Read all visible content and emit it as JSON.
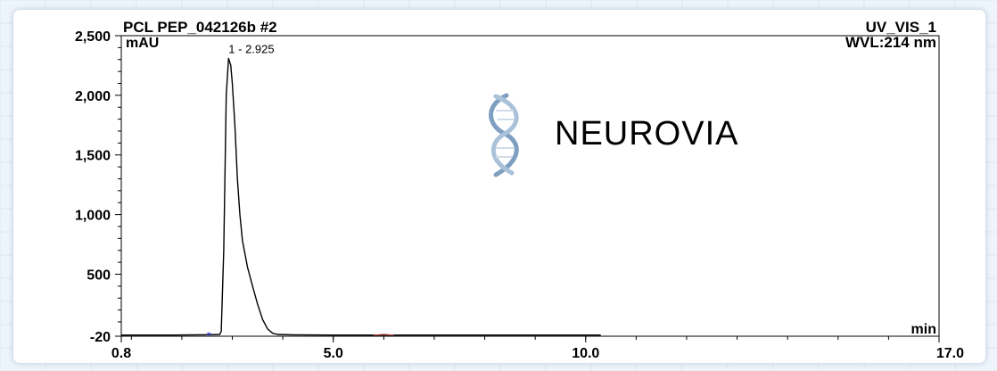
{
  "chart_data": {
    "type": "line",
    "title": "PCL PEP_042126b #2",
    "channel": "UV_VIS_1",
    "wavelength": "WVL:214 nm",
    "ylabel": "mAU",
    "xlabel": "min",
    "xlim": [
      0.8,
      17.0
    ],
    "ylim": [
      -20,
      2500
    ],
    "xticks": [
      0.8,
      5.0,
      10.0,
      17.0
    ],
    "xtick_labels": [
      "0.8",
      "5.0",
      "10.0",
      "17.0"
    ],
    "yticks": [
      -20,
      500,
      1000,
      1500,
      2000,
      2500
    ],
    "ytick_labels": [
      "-20",
      "500",
      "1,000",
      "1,500",
      "2,000",
      "2,500"
    ],
    "grid": false,
    "peaks": [
      {
        "label": "1 - 2.925",
        "x": 2.925,
        "y": 2310
      }
    ],
    "series": [
      {
        "color": "#000000",
        "x": [
          0.8,
          1.8,
          2.3,
          2.55,
          2.75,
          2.78,
          2.83,
          2.88,
          2.925,
          2.97,
          3.0,
          3.05,
          3.1,
          3.15,
          3.2,
          3.3,
          3.4,
          3.5,
          3.6,
          3.7,
          3.8,
          3.9,
          4.2,
          5.0,
          6.0,
          8.0,
          10.3
        ],
        "y": [
          -10,
          -10,
          -8,
          -7,
          -5,
          20,
          700,
          2000,
          2310,
          2250,
          2100,
          1750,
          1300,
          1000,
          780,
          560,
          400,
          250,
          120,
          40,
          5,
          -5,
          -8,
          -10,
          -10,
          -10,
          -10
        ]
      },
      {
        "color": "#3b3bd0",
        "x": [
          2.5,
          2.52,
          2.54,
          2.56,
          2.58
        ],
        "y": [
          -10,
          10,
          -12,
          8,
          -10
        ]
      },
      {
        "color": "#d04040",
        "x": [
          5.8,
          6.0,
          6.2
        ],
        "y": [
          -10,
          -4,
          -10
        ]
      }
    ],
    "colors": {
      "axis": "#000000",
      "background": "#ffffff"
    }
  },
  "logo": {
    "text": "NEUROVIA",
    "color": "#5f84a8"
  }
}
